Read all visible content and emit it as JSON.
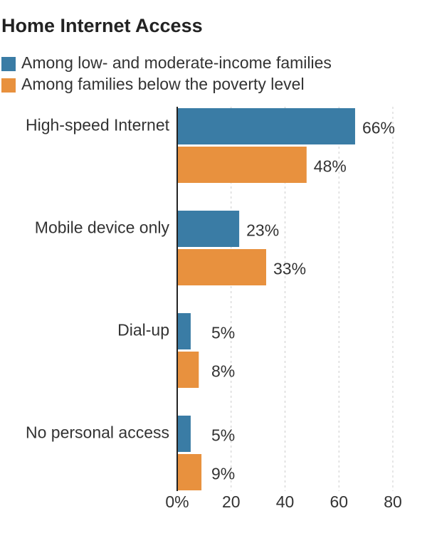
{
  "chart_data": {
    "type": "hbar",
    "title": "Home Internet Access",
    "categories": [
      "High-speed Internet",
      "Mobile device only",
      "Dial-up",
      "No personal access"
    ],
    "series": [
      {
        "name": "Among low- and moderate-income families",
        "color": "#3a7ca5",
        "values": [
          66,
          23,
          5,
          5
        ],
        "value_labels": [
          "66%",
          "23%",
          "5%",
          "5%"
        ]
      },
      {
        "name": "Among families below the poverty level",
        "color": "#e8913e",
        "values": [
          48,
          33,
          8,
          9
        ],
        "value_labels": [
          "48%",
          "33%",
          "8%",
          "9%"
        ]
      }
    ],
    "xlim": [
      0,
      80
    ],
    "xticks": [
      {
        "value": 0,
        "label": "0%"
      },
      20,
      40,
      60,
      80
    ],
    "grid": true
  }
}
